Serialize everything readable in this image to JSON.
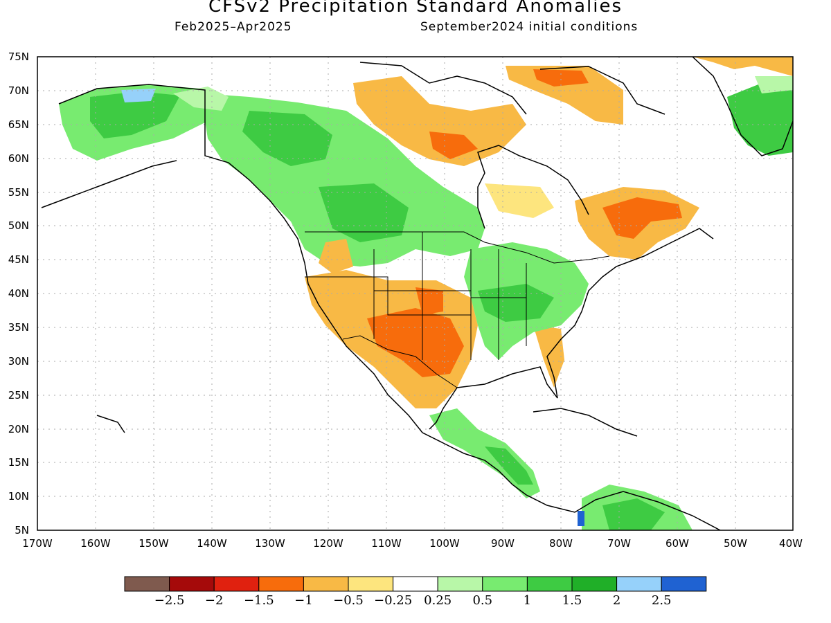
{
  "title": "CFSv2 Precipitation Standard Anomalies",
  "subtitle_left": "Feb2025–Apr2025",
  "subtitle_right": "September2024 initial conditions",
  "lat_labels": [
    "75N",
    "70N",
    "65N",
    "60N",
    "55N",
    "50N",
    "45N",
    "40N",
    "35N",
    "30N",
    "25N",
    "20N",
    "15N",
    "10N",
    "5N"
  ],
  "lon_labels": [
    "170W",
    "160W",
    "150W",
    "140W",
    "130W",
    "120W",
    "110W",
    "100W",
    "90W",
    "80W",
    "70W",
    "60W",
    "50W",
    "40W"
  ],
  "legend": {
    "colors": [
      "#7f5a4e",
      "#a50a0a",
      "#e0210f",
      "#f76c0c",
      "#f8b945",
      "#fde57e",
      "#ffffff",
      "#b8f7a8",
      "#78eb70",
      "#3ecb43",
      "#20af28",
      "#96d1fa",
      "#1f62d2"
    ],
    "labels": [
      "−2.5",
      "−2",
      "−1.5",
      "−1",
      "−0.5",
      "−0.25",
      "0.25",
      "0.5",
      "1",
      "1.5",
      "2",
      "2.5"
    ]
  },
  "chart_data": {
    "type": "heatmap",
    "title": "CFSv2 Precipitation Standard Anomalies",
    "xlim": [
      -170,
      -40
    ],
    "ylim": [
      5,
      75
    ],
    "grid": true,
    "levels": [
      -2.5,
      -2,
      -1.5,
      -1,
      -0.5,
      -0.25,
      0.25,
      0.5,
      1,
      1.5,
      2,
      2.5
    ]
  }
}
